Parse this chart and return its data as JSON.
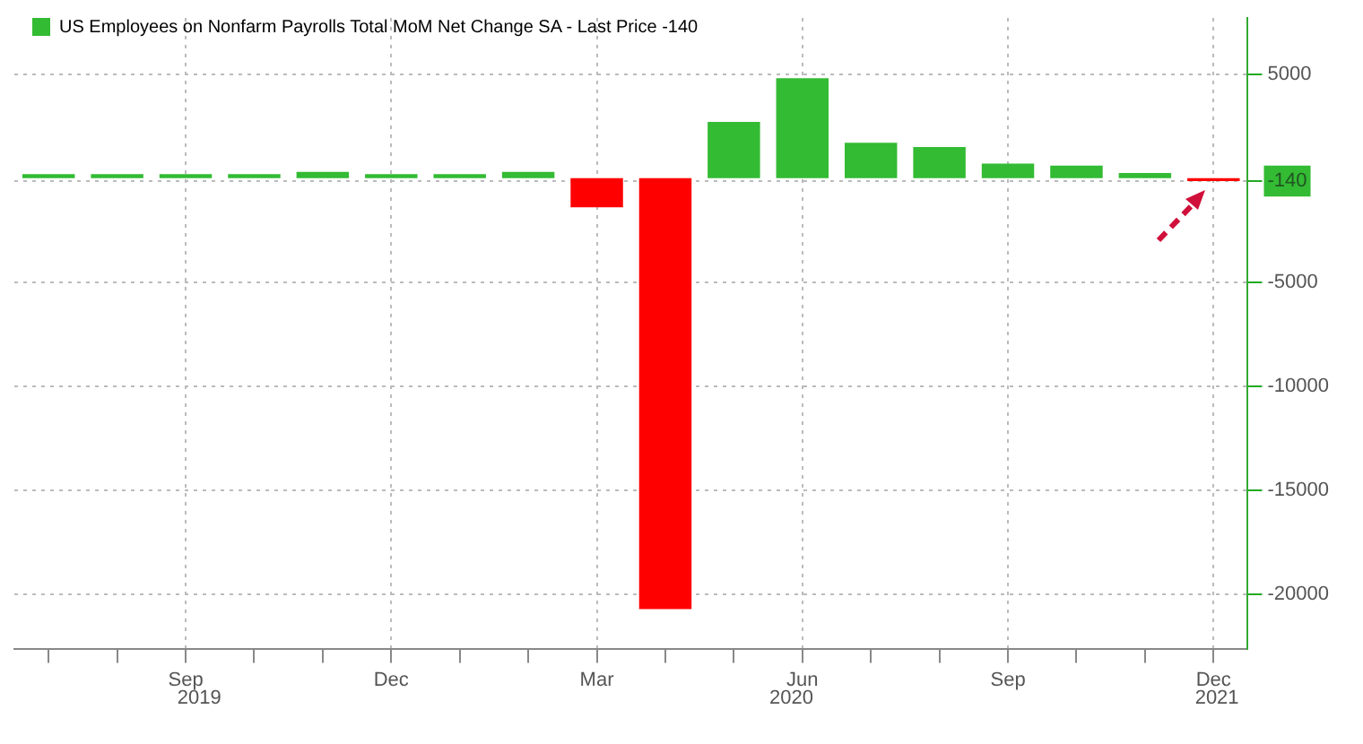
{
  "chart_data": {
    "type": "bar",
    "categories": [
      null,
      null,
      "Sep",
      null,
      null,
      "Dec",
      null,
      null,
      "Mar",
      null,
      null,
      "Jun",
      null,
      null,
      "Sep",
      null,
      null,
      "Dec"
    ],
    "series": [
      {
        "name": "US Employees on Nonfarm Payrolls Total MoM Net Change SA - Last Price -140",
        "color": "#33bb33",
        "colors": [
          "#33bb33",
          "#33bb33",
          "#33bb33",
          "#33bb33",
          "#33bb33",
          "#33bb33",
          "#33bb33",
          "#33bb33",
          "#ff0000",
          "#ff0000",
          "#33bb33",
          "#33bb33",
          "#33bb33",
          "#33bb33",
          "#33bb33",
          "#33bb33",
          "#33bb33",
          "#ff0000"
        ],
        "values": [
          200,
          200,
          200,
          200,
          300,
          200,
          200,
          300,
          -1400,
          -20700,
          2700,
          4800,
          1700,
          1500,
          700,
          600,
          250,
          -140
        ]
      }
    ],
    "ylim": [
      -22600,
      7700
    ],
    "yticks": [
      5000,
      -140,
      -5000,
      -10000,
      -15000,
      -20000
    ],
    "annotations": [
      "2019",
      "2020",
      "2021"
    ],
    "grid": true,
    "legend": "top left"
  }
}
